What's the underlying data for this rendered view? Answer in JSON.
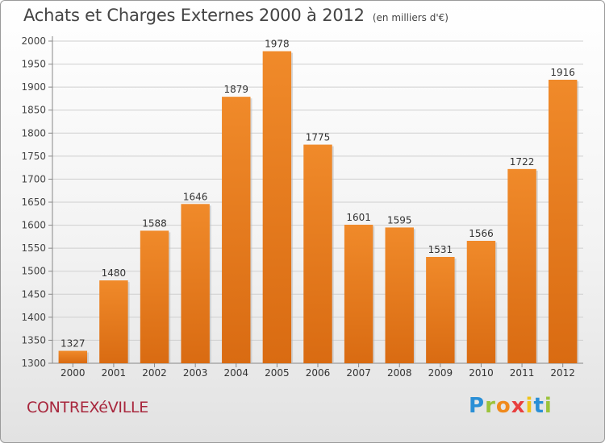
{
  "title": "Achats et Charges Externes 2000 à 2012",
  "unit": "(en milliers d'€)",
  "commune": "CONTREXéVILLE",
  "logo": {
    "letters": [
      "P",
      "r",
      "o",
      "x",
      "i",
      "t",
      "i"
    ],
    "colors": [
      "#2a8fd6",
      "#9bc33b",
      "#f08a1c",
      "#e83f3f",
      "#f0c419",
      "#2a8fd6",
      "#9bc33b"
    ]
  },
  "colors": {
    "bar": "#f08a2a",
    "bar_dark": "#d96b12",
    "grid": "#cfcfcf"
  },
  "chart_data": {
    "type": "bar",
    "title": "Achats et Charges Externes 2000 à 2012",
    "categories": [
      "2000",
      "2001",
      "2002",
      "2003",
      "2004",
      "2005",
      "2006",
      "2007",
      "2008",
      "2009",
      "2010",
      "2011",
      "2012"
    ],
    "values": [
      1327,
      1480,
      1588,
      1646,
      1879,
      1978,
      1775,
      1601,
      1595,
      1531,
      1566,
      1722,
      1916
    ],
    "ylim": [
      1300,
      2000
    ],
    "yticks": [
      1300,
      1350,
      1400,
      1450,
      1500,
      1550,
      1600,
      1650,
      1700,
      1750,
      1800,
      1850,
      1900,
      1950,
      2000
    ],
    "grid": true,
    "legend": "none"
  }
}
